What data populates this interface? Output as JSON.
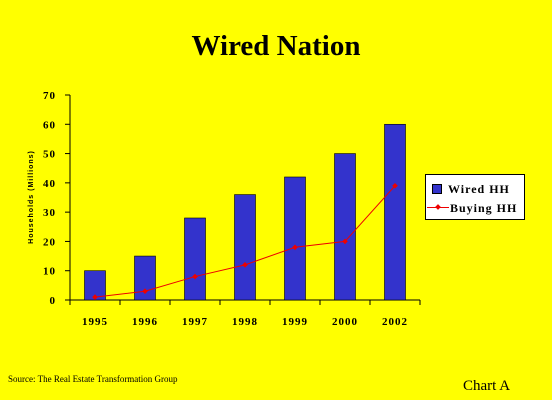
{
  "slide": {
    "title": "Wired Nation",
    "source": "Source: The Real Estate Transformation Group",
    "chart_label": "Chart A"
  },
  "chart_data": {
    "type": "bar",
    "title": "Wired Nation",
    "xlabel": "",
    "ylabel": "Households (Millions)",
    "categories": [
      "1995",
      "1996",
      "1997",
      "1998",
      "1999",
      "2000",
      "2002"
    ],
    "ylim": [
      0,
      70
    ],
    "yticks": [
      0,
      10,
      20,
      30,
      40,
      50,
      60,
      70
    ],
    "grid": false,
    "legend_position": "right",
    "series": [
      {
        "name": "Wired HH",
        "type": "bar",
        "color": "#3333cc",
        "values": [
          10,
          15,
          28,
          36,
          42,
          50,
          60
        ]
      },
      {
        "name": "Buying HH",
        "type": "line",
        "color": "#ee0000",
        "values": [
          1,
          3,
          8,
          12,
          18,
          20,
          39
        ]
      }
    ]
  }
}
